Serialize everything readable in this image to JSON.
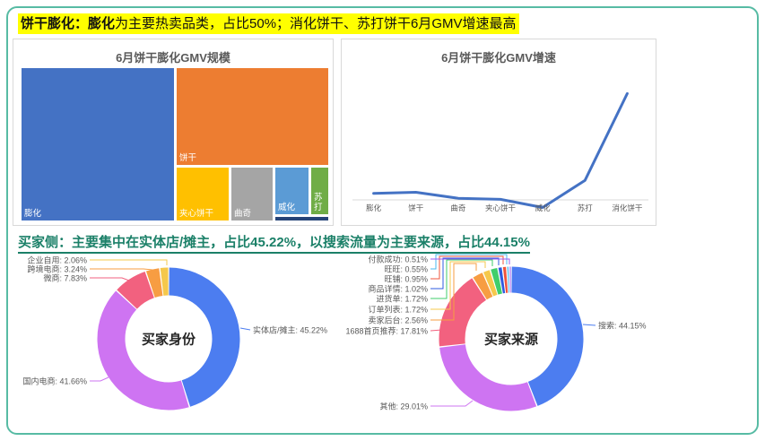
{
  "page": {
    "border_color": "#57bba4",
    "background": "#ffffff"
  },
  "headline_top": {
    "lead": "饼干膨化：膨化",
    "rest": "为主要热卖品类，占比50%；消化饼干、苏打饼干6月GMV增速最高",
    "highlight_color": "#ffff00"
  },
  "headline_buyers": {
    "text": "买家侧：主要集中在实体店/摊主，占比45.22%，以搜索流量为主要来源，占比44.15%",
    "color": "#1b8068"
  },
  "chart_data": [
    {
      "type": "treemap",
      "title": "6月饼干膨化GMV规模",
      "items": [
        {
          "label": "膨化",
          "share_pct_est": 50.0,
          "color": "#4472c4",
          "label_visible": true
        },
        {
          "label": "饼干",
          "share_pct_est": 31.6,
          "color": "#ed7d31",
          "label_visible": true
        },
        {
          "label": "夹心饼干",
          "share_pct_est": 5.7,
          "color": "#ffc000",
          "label_visible": true
        },
        {
          "label": "曲奇",
          "share_pct_est": 4.7,
          "color": "#a5a5a5",
          "label_visible": true
        },
        {
          "label": "威化",
          "share_pct_est": 3.3,
          "color": "#5b9bd5",
          "label_visible": true
        },
        {
          "label": "苏打",
          "share_pct_est": 2.0,
          "color": "#70ad47",
          "label_visible": true
        },
        {
          "label": "消化饼干",
          "share_pct_est": 0.4,
          "color": "#264478",
          "label_visible": false
        }
      ]
    },
    {
      "type": "line",
      "title": "6月饼干膨化GMV增速",
      "categories": [
        "膨化",
        "饼干",
        "曲奇",
        "夹心饼干",
        "威化",
        "苏打",
        "消化饼干"
      ],
      "values_pct_est": [
        6,
        7,
        1.5,
        0.5,
        -7,
        18,
        98
      ],
      "line_color": "#4472c4",
      "axis_color": "#d9d9d9",
      "grid": false,
      "y_axis_labels_visible": false
    },
    {
      "type": "donut",
      "center_label": "买家身份",
      "segments": [
        {
          "label": "实体店/摊主",
          "value_pct": 45.22,
          "color": "#4c7df0"
        },
        {
          "label": "国内电商",
          "value_pct": 41.66,
          "color": "#ce74f2"
        },
        {
          "label": "微商",
          "value_pct": 7.83,
          "color": "#f2617f"
        },
        {
          "label": "跨境电商",
          "value_pct": 3.24,
          "color": "#f79d42"
        },
        {
          "label": "企业自用",
          "value_pct": 2.06,
          "color": "#f5c84c"
        }
      ]
    },
    {
      "type": "donut",
      "center_label": "买家来源",
      "segments": [
        {
          "label": "搜索",
          "value_pct": 44.15,
          "color": "#4c7df0"
        },
        {
          "label": "其他",
          "value_pct": 29.01,
          "color": "#ce74f2"
        },
        {
          "label": "1688首页推荐",
          "value_pct": 17.81,
          "color": "#f2617f"
        },
        {
          "label": "卖家后台",
          "value_pct": 2.56,
          "color": "#f79d42"
        },
        {
          "label": "订单列表",
          "value_pct": 1.72,
          "color": "#f5c84c"
        },
        {
          "label": "进货单",
          "value_pct": 1.72,
          "color": "#3fce6b"
        },
        {
          "label": "商品详情",
          "value_pct": 1.02,
          "color": "#2e5be0"
        },
        {
          "label": "旺铺",
          "value_pct": 0.95,
          "color": "#f0543c"
        },
        {
          "label": "旺旺",
          "value_pct": 0.55,
          "color": "#49b8f0"
        },
        {
          "label": "付款成功",
          "value_pct": 0.51,
          "color": "#9c5bf0"
        }
      ]
    }
  ]
}
